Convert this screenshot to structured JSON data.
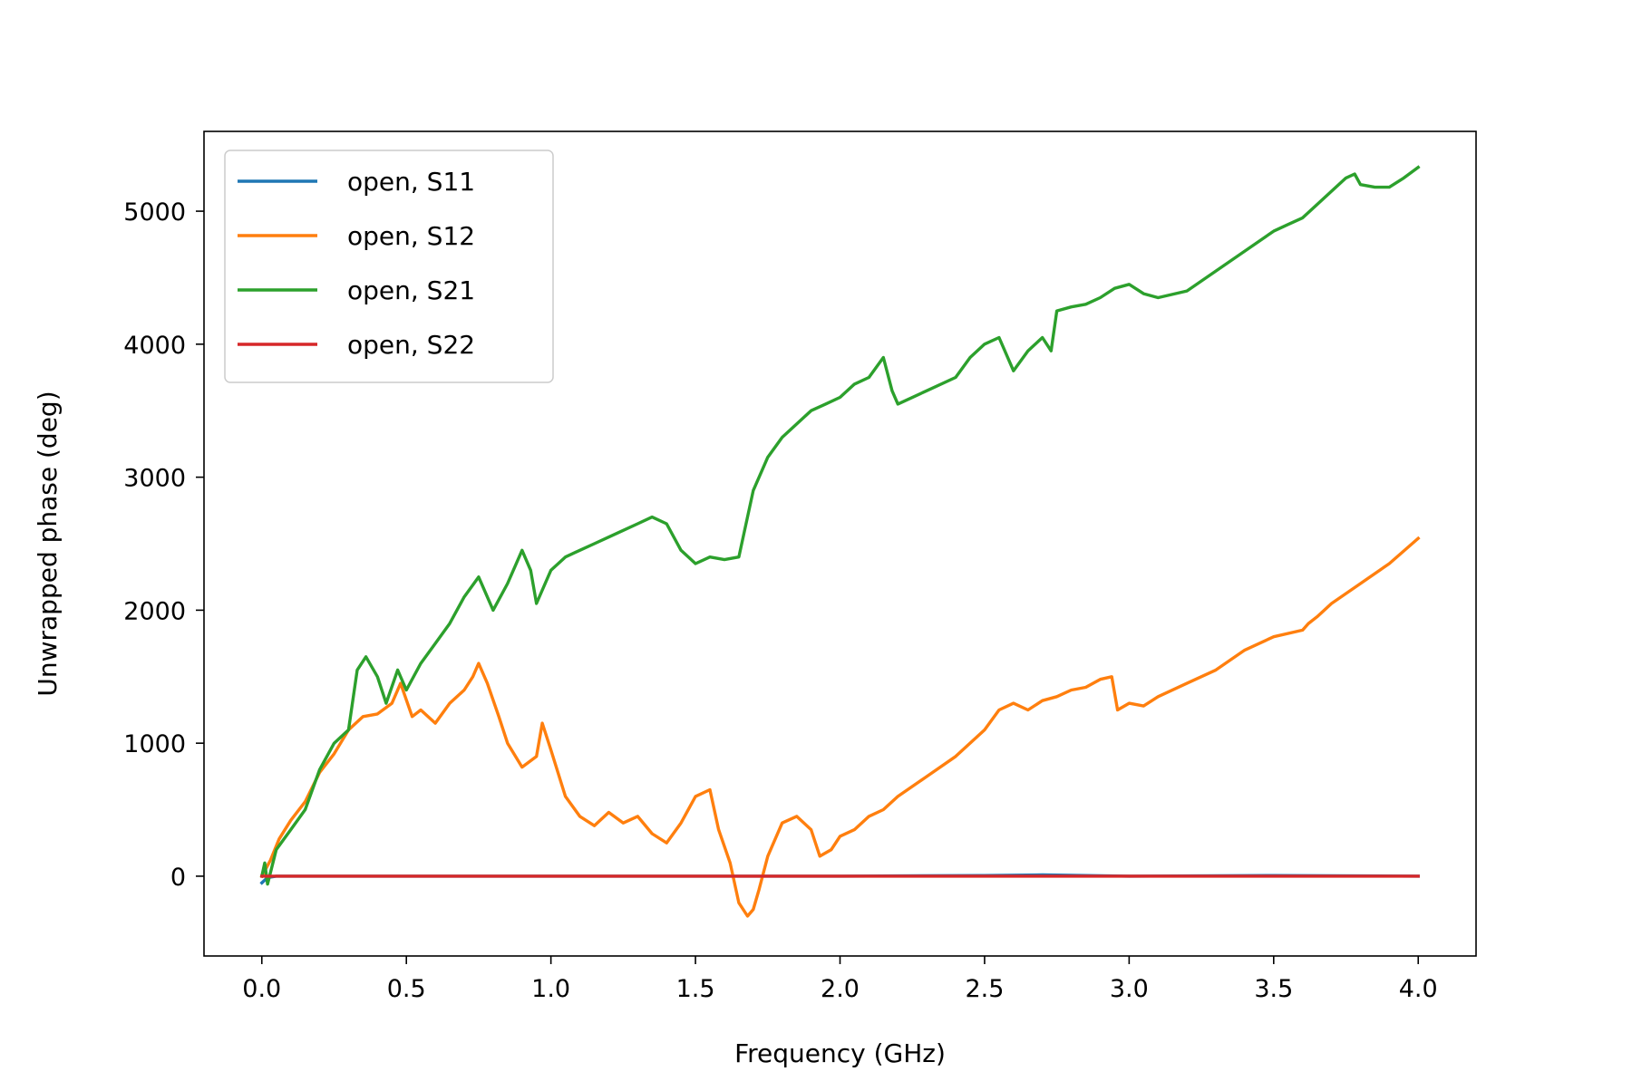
{
  "chart_data": {
    "type": "line",
    "title": "",
    "xlabel": "Frequency (GHz)",
    "ylabel": "Unwrapped phase (deg)",
    "xlim": [
      -0.2,
      4.2
    ],
    "ylim": [
      -600,
      5600
    ],
    "xticks": [
      "0.0",
      "0.5",
      "1.0",
      "1.5",
      "2.0",
      "2.5",
      "3.0",
      "3.5",
      "4.0"
    ],
    "yticks": [
      "0",
      "1000",
      "2000",
      "3000",
      "4000",
      "5000"
    ],
    "grid": false,
    "legend_position": "upper-left",
    "series": [
      {
        "name": "open, S11",
        "color": "#1f77b4",
        "x": [
          0.0,
          0.02,
          0.05,
          0.5,
          1.0,
          1.5,
          2.0,
          2.5,
          2.7,
          3.0,
          3.5,
          4.0
        ],
        "y": [
          -50,
          -10,
          0,
          0,
          0,
          0,
          0,
          5,
          10,
          0,
          5,
          0
        ]
      },
      {
        "name": "open, S12",
        "color": "#ff7f0e",
        "x": [
          0.0,
          0.03,
          0.06,
          0.1,
          0.15,
          0.2,
          0.25,
          0.3,
          0.35,
          0.4,
          0.45,
          0.48,
          0.52,
          0.55,
          0.6,
          0.65,
          0.7,
          0.73,
          0.75,
          0.78,
          0.82,
          0.85,
          0.9,
          0.95,
          0.97,
          1.0,
          1.05,
          1.1,
          1.15,
          1.2,
          1.25,
          1.3,
          1.35,
          1.4,
          1.45,
          1.5,
          1.55,
          1.58,
          1.62,
          1.65,
          1.68,
          1.7,
          1.72,
          1.75,
          1.8,
          1.85,
          1.9,
          1.93,
          1.97,
          2.0,
          2.05,
          2.1,
          2.15,
          2.2,
          2.3,
          2.4,
          2.5,
          2.55,
          2.6,
          2.65,
          2.7,
          2.75,
          2.8,
          2.85,
          2.9,
          2.94,
          2.96,
          3.0,
          3.05,
          3.1,
          3.2,
          3.3,
          3.4,
          3.5,
          3.6,
          3.62,
          3.65,
          3.7,
          3.8,
          3.9,
          4.0
        ],
        "y": [
          0,
          120,
          280,
          420,
          560,
          780,
          920,
          1100,
          1200,
          1220,
          1300,
          1450,
          1200,
          1250,
          1150,
          1300,
          1400,
          1500,
          1600,
          1450,
          1200,
          1000,
          820,
          900,
          1150,
          950,
          600,
          450,
          380,
          480,
          400,
          450,
          320,
          250,
          400,
          600,
          650,
          350,
          100,
          -200,
          -300,
          -250,
          -100,
          150,
          400,
          450,
          350,
          150,
          200,
          300,
          350,
          450,
          500,
          600,
          750,
          900,
          1100,
          1250,
          1300,
          1250,
          1320,
          1350,
          1400,
          1420,
          1480,
          1500,
          1250,
          1300,
          1280,
          1350,
          1450,
          1550,
          1700,
          1800,
          1850,
          1900,
          1950,
          2050,
          2200,
          2350,
          2540
        ]
      },
      {
        "name": "open, S21",
        "color": "#2ca02c",
        "x": [
          0.0,
          0.01,
          0.02,
          0.05,
          0.1,
          0.15,
          0.2,
          0.25,
          0.3,
          0.33,
          0.36,
          0.4,
          0.43,
          0.47,
          0.5,
          0.55,
          0.6,
          0.65,
          0.7,
          0.75,
          0.8,
          0.85,
          0.9,
          0.93,
          0.95,
          1.0,
          1.05,
          1.1,
          1.15,
          1.2,
          1.25,
          1.3,
          1.35,
          1.4,
          1.45,
          1.5,
          1.55,
          1.6,
          1.65,
          1.7,
          1.75,
          1.8,
          1.85,
          1.9,
          1.95,
          2.0,
          2.05,
          2.1,
          2.15,
          2.18,
          2.2,
          2.3,
          2.4,
          2.45,
          2.5,
          2.55,
          2.6,
          2.65,
          2.7,
          2.73,
          2.75,
          2.8,
          2.85,
          2.9,
          2.95,
          3.0,
          3.05,
          3.1,
          3.2,
          3.3,
          3.4,
          3.5,
          3.55,
          3.6,
          3.65,
          3.7,
          3.75,
          3.78,
          3.8,
          3.85,
          3.9,
          3.95,
          4.0
        ],
        "y": [
          0,
          100,
          -60,
          200,
          350,
          500,
          800,
          1000,
          1100,
          1550,
          1650,
          1500,
          1300,
          1550,
          1400,
          1600,
          1750,
          1900,
          2100,
          2250,
          2000,
          2200,
          2450,
          2300,
          2050,
          2300,
          2400,
          2450,
          2500,
          2550,
          2600,
          2650,
          2700,
          2650,
          2450,
          2350,
          2400,
          2380,
          2400,
          2900,
          3150,
          3300,
          3400,
          3500,
          3550,
          3600,
          3700,
          3750,
          3900,
          3650,
          3550,
          3650,
          3750,
          3900,
          4000,
          4050,
          3800,
          3950,
          4050,
          3950,
          4250,
          4280,
          4300,
          4350,
          4420,
          4450,
          4380,
          4350,
          4400,
          4550,
          4700,
          4850,
          4900,
          4950,
          5050,
          5150,
          5250,
          5280,
          5200,
          5180,
          5180,
          5250,
          5330
        ]
      },
      {
        "name": "open, S22",
        "color": "#d62728",
        "x": [
          0.0,
          0.5,
          1.0,
          1.5,
          2.0,
          2.5,
          3.0,
          3.5,
          4.0
        ],
        "y": [
          0,
          0,
          0,
          0,
          0,
          0,
          0,
          0,
          0
        ]
      }
    ]
  }
}
